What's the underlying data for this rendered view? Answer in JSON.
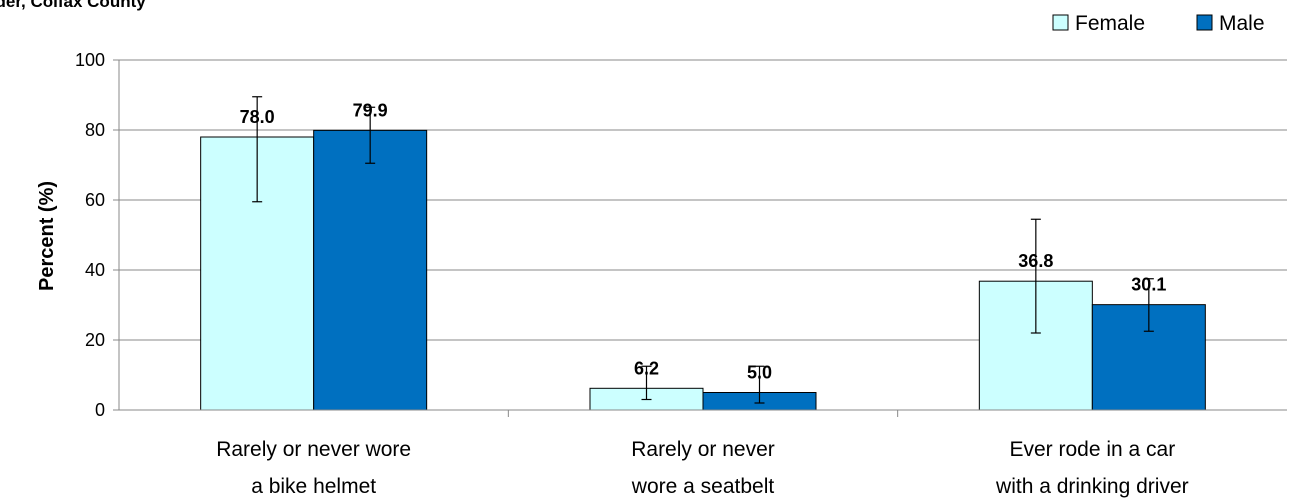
{
  "chart_data": {
    "type": "bar",
    "title": "By Gender, Colfax County",
    "ylabel": "Percent (%)",
    "xlabel": "",
    "ylim": [
      0,
      100
    ],
    "yticks": [
      "0",
      "20",
      "40",
      "60",
      "80",
      "100"
    ],
    "grid": true,
    "legend_position": "top-right",
    "categories": [
      [
        "Rarely or never wore",
        "a bike helmet"
      ],
      [
        "Rarely or never",
        "wore a seatbelt"
      ],
      [
        "Ever rode in a car",
        "with a drinking driver"
      ]
    ],
    "series": [
      {
        "name": "Female",
        "color": "#ccffff",
        "values": [
          78.0,
          6.2,
          36.8
        ],
        "labels": [
          "78.0",
          "6.2",
          "36.8"
        ],
        "error_low": [
          59.5,
          3.0,
          22.0
        ],
        "error_high": [
          89.5,
          12.5,
          54.5
        ]
      },
      {
        "name": "Male",
        "color": "#0070c0",
        "values": [
          79.9,
          5.0,
          30.1
        ],
        "labels": [
          "79.9",
          "5.0",
          "30.1"
        ],
        "error_low": [
          70.5,
          2.0,
          22.5
        ],
        "error_high": [
          86.5,
          12.5,
          37.5
        ]
      }
    ]
  }
}
